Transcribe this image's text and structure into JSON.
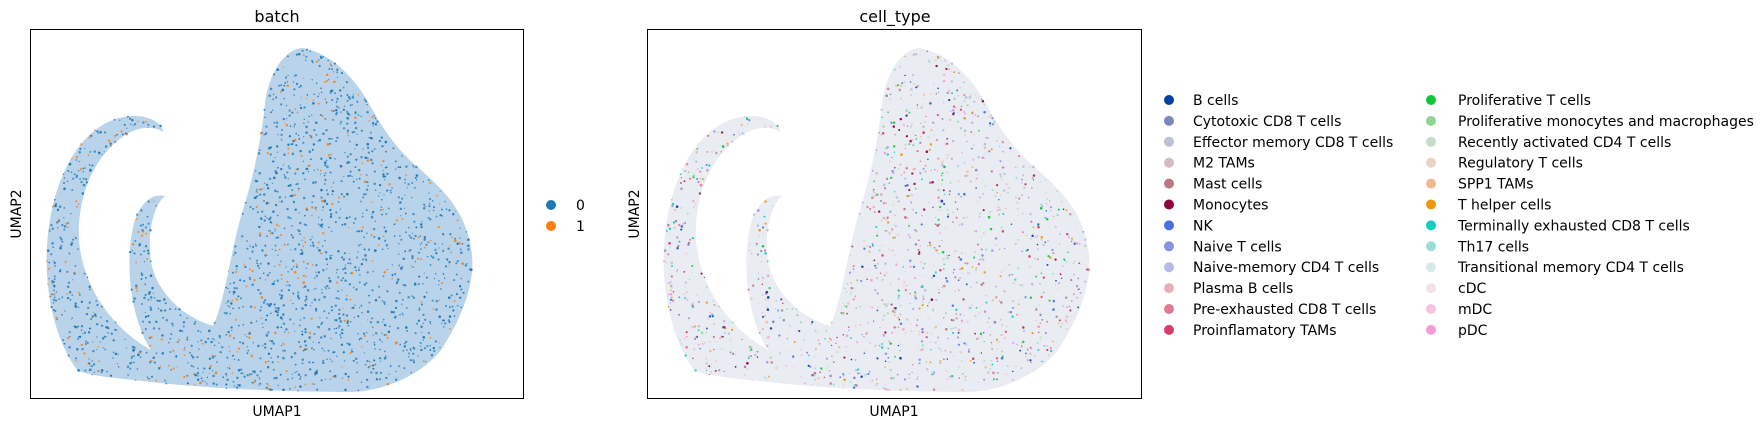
{
  "chart_data": [
    {
      "type": "scatter",
      "title": "batch",
      "xlabel": "UMAP1",
      "ylabel": "UMAP2",
      "grid": false,
      "axis_ticks": false,
      "legend_placement": "right",
      "legend": [
        {
          "label": "0",
          "color": "#1f77b4"
        },
        {
          "label": "1",
          "color": "#ff7f0e"
        }
      ]
    },
    {
      "type": "scatter",
      "title": "cell_type",
      "xlabel": "UMAP1",
      "ylabel": "UMAP2",
      "grid": false,
      "axis_ticks": false,
      "legend_placement": "right",
      "legend": [
        {
          "label": "B cells",
          "color": "#023fa5"
        },
        {
          "label": "Cytotoxic CD8 T cells",
          "color": "#7d87b9"
        },
        {
          "label": "Effector memory CD8 T cells",
          "color": "#bec1d4"
        },
        {
          "label": "M2 TAMs",
          "color": "#d6bcc0"
        },
        {
          "label": "Mast cells",
          "color": "#bb7784"
        },
        {
          "label": "Monocytes",
          "color": "#8e063b"
        },
        {
          "label": "NK",
          "color": "#4a6fe3"
        },
        {
          "label": "Naive T cells",
          "color": "#8595e1"
        },
        {
          "label": "Naive-memory CD4 T cells",
          "color": "#b5bbe3"
        },
        {
          "label": "Plasma B cells",
          "color": "#e6afb9"
        },
        {
          "label": "Pre-exhausted CD8 T cells",
          "color": "#e07b91"
        },
        {
          "label": "Proinflamatory TAMs",
          "color": "#d33f6a"
        },
        {
          "label": "Proliferative T cells",
          "color": "#11c638"
        },
        {
          "label": "Proliferative monocytes and macrophages",
          "color": "#8dd593"
        },
        {
          "label": "Recently activated CD4 T cells",
          "color": "#c6dec7"
        },
        {
          "label": "Regulatory T cells",
          "color": "#ead3c6"
        },
        {
          "label": "SPP1 TAMs",
          "color": "#f0b98d"
        },
        {
          "label": "T helper cells",
          "color": "#ef9708"
        },
        {
          "label": "Terminally exhausted CD8 T cells",
          "color": "#0fcfc0"
        },
        {
          "label": "Th17 cells",
          "color": "#9cded6"
        },
        {
          "label": "Transitional memory CD4 T cells",
          "color": "#d5eae7"
        },
        {
          "label": "cDC",
          "color": "#f3e1eb"
        },
        {
          "label": "mDC",
          "color": "#f6c4e1"
        },
        {
          "label": "pDC",
          "color": "#f79cd4"
        }
      ]
    }
  ]
}
